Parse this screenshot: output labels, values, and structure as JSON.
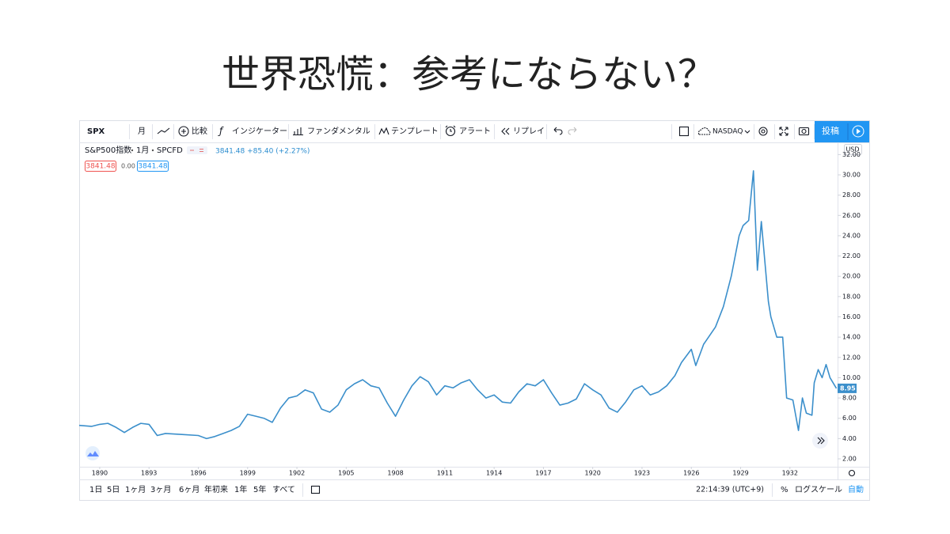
{
  "slide": {
    "title": "世界恐慌：参考にならない？"
  },
  "toolbar": {
    "symbol": "SPX",
    "interval": "月",
    "compare": "比較",
    "indicators": "インジケーター",
    "fundamentals": "ファンダメンタル",
    "templates": "テンプレート",
    "alert": "アラート",
    "replay": "リプレイ",
    "exchange": "NASDAQ",
    "publish": "投稿"
  },
  "legend": {
    "name": "S&P500指数",
    "interval": "1月",
    "source": "SPCFD",
    "quote": "3841.48 +85.40 (+2.27%)",
    "bid": "3841.48",
    "spread": "0.00",
    "ask": "3841.48"
  },
  "chart_data": {
    "type": "line",
    "currency": "USD",
    "x": [
      1888.75,
      1889.5,
      1890,
      1890.5,
      1891,
      1891.5,
      1892,
      1892.5,
      1893,
      1893.5,
      1894,
      1895,
      1896,
      1896.5,
      1897,
      1897.5,
      1898,
      1898.5,
      1899,
      1899.5,
      1900,
      1900.5,
      1901,
      1901.5,
      1902,
      1902.5,
      1903,
      1903.5,
      1904,
      1904.5,
      1905,
      1905.5,
      1906,
      1906.5,
      1907,
      1907.5,
      1908,
      1908.5,
      1909,
      1909.5,
      1910,
      1910.5,
      1911,
      1911.5,
      1912,
      1912.5,
      1913,
      1913.5,
      1914,
      1914.5,
      1915,
      1915.5,
      1916,
      1916.5,
      1917,
      1917.5,
      1918,
      1918.5,
      1919,
      1919.5,
      1920,
      1920.5,
      1921,
      1921.5,
      1922,
      1922.5,
      1923,
      1923.5,
      1924,
      1924.5,
      1925,
      1925.4,
      1926,
      1926.27,
      1926.75,
      1927.47,
      1927.95,
      1928.43,
      1928.91,
      1929.15,
      1929.49,
      1929.78,
      1930.02,
      1930.26,
      1930.5,
      1930.69,
      1930.84,
      1931.2,
      1931.56,
      1931.8,
      1932.18,
      1932.52,
      1932.76,
      1933.0,
      1933.34,
      1933.48,
      1933.72,
      1933.96,
      1934.2,
      1934.44,
      1934.83
    ],
    "series": [
      {
        "name": "S&P500指数",
        "color": "#3b8fcb",
        "values": [
          5.3,
          5.2,
          5.4,
          5.5,
          5.1,
          4.6,
          5.1,
          5.5,
          5.4,
          4.3,
          4.5,
          4.4,
          4.3,
          4.0,
          4.2,
          4.5,
          4.8,
          5.2,
          6.4,
          6.2,
          6.0,
          5.6,
          7.0,
          8.0,
          8.2,
          8.8,
          8.5,
          6.9,
          6.6,
          7.3,
          8.8,
          9.4,
          9.8,
          9.2,
          9.0,
          7.5,
          6.2,
          7.8,
          9.2,
          10.1,
          9.6,
          8.3,
          9.2,
          9.0,
          9.5,
          9.8,
          8.8,
          8.0,
          8.3,
          7.6,
          7.5,
          8.6,
          9.4,
          9.2,
          9.8,
          8.5,
          7.3,
          7.5,
          7.9,
          9.4,
          8.8,
          8.3,
          7.0,
          6.6,
          7.6,
          8.8,
          9.2,
          8.3,
          8.6,
          9.2,
          10.2,
          11.5,
          12.8,
          11.2,
          13.3,
          15.0,
          17.0,
          20.0,
          24.0,
          25.0,
          25.5,
          30.4,
          20.6,
          25.4,
          21.0,
          17.5,
          16.0,
          14.0,
          14.0,
          8.0,
          7.8,
          4.8,
          8.0,
          6.5,
          6.3,
          9.5,
          10.8,
          10.0,
          11.3,
          10.0,
          8.95
        ]
      }
    ],
    "xlim": [
      1888.75,
      1934.9
    ],
    "ylim": [
      1.22,
      33.2
    ],
    "xticks": [
      1890,
      1893,
      1896,
      1899,
      1902,
      1905,
      1908,
      1911,
      1914,
      1917,
      1920,
      1923,
      1926,
      1929,
      1932
    ],
    "yticks": [
      {
        "value": 2,
        "label": "2.00"
      },
      {
        "value": 4,
        "label": "4.00"
      },
      {
        "value": 6,
        "label": "6.00"
      },
      {
        "value": 8,
        "label": "8.00"
      },
      {
        "value": 10,
        "label": "10.00"
      },
      {
        "value": 12,
        "label": "12.00"
      },
      {
        "value": 14,
        "label": "14.00"
      },
      {
        "value": 16,
        "label": "16.00"
      },
      {
        "value": 18,
        "label": "18.00"
      },
      {
        "value": 20,
        "label": "20.00"
      },
      {
        "value": 22,
        "label": "22.00"
      },
      {
        "value": 24,
        "label": "24.00"
      },
      {
        "value": 26,
        "label": "26.00"
      },
      {
        "value": 28,
        "label": "28.00"
      },
      {
        "value": 30,
        "label": "30.00"
      },
      {
        "value": 32,
        "label": "32.00"
      }
    ],
    "grid": false
  },
  "bottom_bar": {
    "ranges": [
      "1日",
      "5日",
      "1ヶ月",
      "3ヶ月",
      "6ヶ月",
      "年初来",
      "1年",
      "5年",
      "すべて"
    ],
    "clock": "22:14:39 (UTC+9)",
    "percent": "%",
    "log": "ログスケール",
    "auto": "自動"
  }
}
